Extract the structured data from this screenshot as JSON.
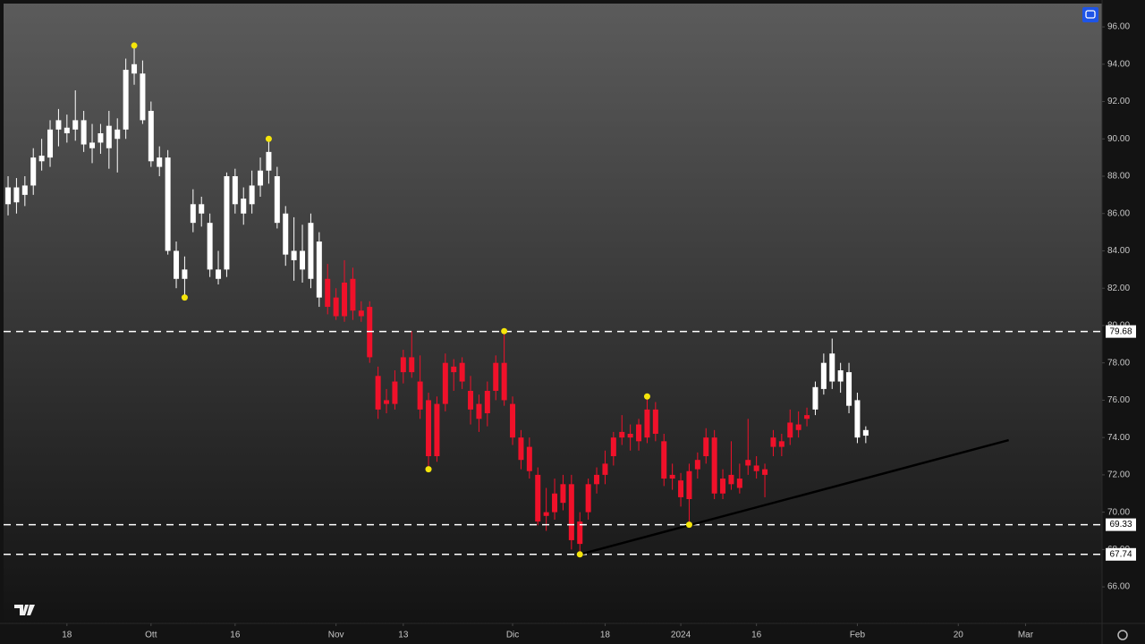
{
  "chart_data": {
    "type": "candlestick",
    "xlim": [
      -0.96,
      130.1
    ],
    "ylim": [
      64.04,
      97.44
    ],
    "yticks": [
      {
        "value": 66,
        "label": "66.00"
      },
      {
        "value": 68,
        "label": "68.00"
      },
      {
        "value": 70,
        "label": "70.00"
      },
      {
        "value": 72,
        "label": "72.00"
      },
      {
        "value": 74,
        "label": "74.00"
      },
      {
        "value": 76,
        "label": "76.00"
      },
      {
        "value": 78,
        "label": "78.00"
      },
      {
        "value": 80,
        "label": "80.00"
      },
      {
        "value": 82,
        "label": "82.00"
      },
      {
        "value": 84,
        "label": "84.00"
      },
      {
        "value": 86,
        "label": "86.00"
      },
      {
        "value": 88,
        "label": "88.00"
      },
      {
        "value": 90,
        "label": "90.00"
      },
      {
        "value": 92,
        "label": "92.00"
      },
      {
        "value": 94,
        "label": "94.00"
      },
      {
        "value": 96,
        "label": "96.00"
      }
    ],
    "xticks": [
      {
        "value": 7,
        "label": "18"
      },
      {
        "value": 17,
        "label": "Ott"
      },
      {
        "value": 27,
        "label": "16"
      },
      {
        "value": 39,
        "label": "Nov"
      },
      {
        "value": 47,
        "label": "13"
      },
      {
        "value": 60,
        "label": "Dic"
      },
      {
        "value": 71,
        "label": "18"
      },
      {
        "value": 80,
        "label": "2024"
      },
      {
        "value": 89,
        "label": "16"
      },
      {
        "value": 101,
        "label": "Feb"
      },
      {
        "value": 113,
        "label": "20"
      },
      {
        "value": 121,
        "label": "Mar"
      }
    ],
    "candles": [
      [
        86.5,
        88.0,
        85.9,
        87.4
      ],
      [
        86.6,
        87.9,
        86.0,
        87.4
      ],
      [
        87.0,
        88.0,
        86.4,
        87.5
      ],
      [
        87.5,
        89.5,
        87.0,
        89.0
      ],
      [
        88.8,
        90.0,
        88.3,
        89.1
      ],
      [
        89.0,
        91.0,
        88.5,
        90.5
      ],
      [
        90.5,
        91.6,
        89.6,
        91.0
      ],
      [
        90.3,
        91.3,
        89.8,
        90.6
      ],
      [
        90.5,
        92.6,
        89.9,
        91.0
      ],
      [
        91.0,
        91.5,
        89.3,
        89.7
      ],
      [
        89.5,
        90.8,
        88.7,
        89.8
      ],
      [
        89.8,
        90.8,
        89.2,
        90.3
      ],
      [
        89.5,
        91.5,
        88.4,
        90.7
      ],
      [
        90.0,
        91.1,
        88.2,
        90.5
      ],
      [
        90.5,
        94.3,
        90.0,
        93.7
      ],
      [
        93.5,
        95.0,
        92.9,
        94.0
      ],
      [
        93.5,
        94.2,
        90.8,
        91.0
      ],
      [
        91.5,
        92.0,
        88.5,
        88.8
      ],
      [
        88.5,
        89.6,
        88.0,
        89.0
      ],
      [
        89.0,
        89.4,
        83.8,
        84.0
      ],
      [
        84.0,
        84.5,
        82.0,
        82.5
      ],
      [
        82.5,
        83.7,
        81.5,
        83.0
      ],
      [
        85.5,
        87.3,
        85.0,
        86.5
      ],
      [
        86.0,
        86.9,
        85.3,
        86.5
      ],
      [
        85.5,
        86.0,
        82.6,
        83.0
      ],
      [
        83.0,
        84.0,
        82.2,
        82.5
      ],
      [
        83.0,
        88.2,
        82.6,
        88.0
      ],
      [
        88.0,
        88.4,
        86.0,
        86.5
      ],
      [
        86.0,
        87.4,
        85.4,
        86.8
      ],
      [
        86.5,
        88.3,
        86.0,
        87.5
      ],
      [
        87.5,
        89.0,
        86.9,
        88.3
      ],
      [
        88.3,
        90.0,
        87.6,
        89.3
      ],
      [
        88.0,
        88.5,
        85.2,
        85.5
      ],
      [
        86.0,
        86.4,
        83.2,
        83.8
      ],
      [
        84.0,
        85.8,
        82.4,
        83.5
      ],
      [
        84.0,
        85.4,
        82.3,
        83.0
      ],
      [
        85.5,
        86.0,
        82.0,
        82.5
      ],
      [
        84.5,
        85.0,
        81.0,
        81.5
      ],
      [
        82.5,
        83.3,
        80.6,
        81.0
      ],
      [
        81.5,
        82.0,
        80.3,
        80.5
      ],
      [
        80.5,
        83.5,
        80.2,
        82.3
      ],
      [
        82.5,
        83.1,
        80.3,
        80.8
      ],
      [
        80.8,
        81.3,
        80.2,
        80.5
      ],
      [
        81.0,
        81.3,
        78.0,
        78.3
      ],
      [
        77.3,
        77.8,
        75.0,
        75.5
      ],
      [
        76.0,
        76.6,
        75.3,
        75.8
      ],
      [
        77.0,
        77.6,
        75.5,
        75.8
      ],
      [
        77.5,
        78.7,
        76.9,
        78.3
      ],
      [
        78.3,
        79.7,
        77.2,
        77.5
      ],
      [
        77.0,
        78.4,
        75.0,
        75.5
      ],
      [
        76.0,
        76.4,
        72.3,
        73.0
      ],
      [
        73.0,
        76.2,
        72.7,
        75.8
      ],
      [
        75.8,
        78.5,
        75.4,
        78.0
      ],
      [
        77.8,
        78.2,
        76.5,
        77.5
      ],
      [
        78.0,
        78.3,
        76.6,
        77.0
      ],
      [
        76.5,
        77.3,
        74.7,
        75.5
      ],
      [
        75.8,
        76.3,
        74.3,
        75.0
      ],
      [
        75.3,
        77.0,
        74.6,
        76.5
      ],
      [
        76.5,
        78.4,
        76.0,
        78.0
      ],
      [
        78.0,
        79.7,
        75.7,
        76.0
      ],
      [
        75.8,
        76.2,
        73.6,
        74.0
      ],
      [
        74.0,
        74.4,
        72.3,
        72.8
      ],
      [
        73.5,
        74.0,
        71.8,
        72.2
      ],
      [
        72.0,
        72.4,
        69.3,
        69.5
      ],
      [
        70.0,
        71.3,
        69.0,
        69.8
      ],
      [
        71.0,
        71.8,
        69.6,
        70.0
      ],
      [
        71.5,
        72.0,
        70.1,
        70.5
      ],
      [
        71.5,
        72.0,
        68.0,
        68.5
      ],
      [
        69.5,
        70.0,
        67.74,
        68.3
      ],
      [
        70.0,
        71.8,
        69.6,
        71.5
      ],
      [
        71.5,
        72.4,
        71.0,
        72.0
      ],
      [
        72.0,
        73.3,
        71.5,
        72.6
      ],
      [
        73.0,
        74.3,
        72.5,
        74.0
      ],
      [
        74.0,
        75.2,
        73.6,
        74.3
      ],
      [
        74.2,
        74.7,
        73.3,
        74.0
      ],
      [
        73.8,
        75.0,
        73.3,
        74.7
      ],
      [
        74.0,
        76.2,
        73.7,
        75.5
      ],
      [
        75.5,
        75.9,
        73.8,
        74.2
      ],
      [
        73.8,
        74.2,
        71.4,
        71.8
      ],
      [
        72.0,
        72.6,
        71.2,
        71.8
      ],
      [
        71.7,
        72.1,
        70.3,
        70.8
      ],
      [
        70.7,
        72.6,
        69.33,
        72.2
      ],
      [
        72.3,
        73.2,
        71.8,
        72.8
      ],
      [
        73.0,
        74.5,
        72.6,
        74.0
      ],
      [
        74.0,
        74.4,
        70.7,
        71.0
      ],
      [
        71.0,
        72.3,
        70.7,
        71.8
      ],
      [
        72.0,
        73.8,
        71.2,
        71.5
      ],
      [
        71.8,
        72.6,
        71.0,
        71.3
      ],
      [
        72.5,
        75.0,
        72.0,
        72.8
      ],
      [
        72.5,
        73.0,
        71.8,
        72.2
      ],
      [
        72.0,
        72.6,
        70.8,
        72.3
      ],
      [
        73.5,
        74.4,
        73.0,
        74.0
      ],
      [
        73.5,
        74.2,
        73.0,
        73.8
      ],
      [
        74.0,
        75.5,
        73.6,
        74.8
      ],
      [
        74.7,
        75.4,
        74.0,
        74.4
      ],
      [
        75.0,
        75.6,
        74.6,
        75.2
      ],
      [
        75.5,
        77.0,
        75.2,
        76.7
      ],
      [
        76.6,
        78.5,
        76.3,
        78.0
      ],
      [
        78.5,
        79.3,
        76.6,
        77.0
      ],
      [
        77.0,
        78.0,
        76.4,
        77.6
      ],
      [
        77.5,
        78.0,
        75.3,
        75.7
      ],
      [
        76.0,
        76.4,
        73.7,
        74.0
      ],
      [
        74.1,
        74.6,
        73.7,
        74.4
      ]
    ],
    "colors": [
      "#ffffff",
      "#ffffff",
      "#ffffff",
      "#ffffff",
      "#ffffff",
      "#ffffff",
      "#ffffff",
      "#ffffff",
      "#ffffff",
      "#ffffff",
      "#ffffff",
      "#ffffff",
      "#ffffff",
      "#ffffff",
      "#ffffff",
      "#ffffff",
      "#ffffff",
      "#ffffff",
      "#ffffff",
      "#ffffff",
      "#ffffff",
      "#ffffff",
      "#ffffff",
      "#ffffff",
      "#ffffff",
      "#ffffff",
      "#ffffff",
      "#ffffff",
      "#ffffff",
      "#ffffff",
      "#ffffff",
      "#ffffff",
      "#ffffff",
      "#ffffff",
      "#ffffff",
      "#ffffff",
      "#ffffff",
      "#ffffff",
      "#f0112a",
      "#f0112a",
      "#f0112a",
      "#f0112a",
      "#f0112a",
      "#f0112a",
      "#f0112a",
      "#f0112a",
      "#f0112a",
      "#f0112a",
      "#f0112a",
      "#f0112a",
      "#f0112a",
      "#f0112a",
      "#f0112a",
      "#f0112a",
      "#f0112a",
      "#f0112a",
      "#f0112a",
      "#f0112a",
      "#f0112a",
      "#f0112a",
      "#f0112a",
      "#f0112a",
      "#f0112a",
      "#f0112a",
      "#f0112a",
      "#f0112a",
      "#f0112a",
      "#f0112a",
      "#f0112a",
      "#f0112a",
      "#f0112a",
      "#f0112a",
      "#f0112a",
      "#f0112a",
      "#f0112a",
      "#f0112a",
      "#f0112a",
      "#f0112a",
      "#f0112a",
      "#f0112a",
      "#f0112a",
      "#f0112a",
      "#f0112a",
      "#f0112a",
      "#f0112a",
      "#f0112a",
      "#f0112a",
      "#f0112a",
      "#f0112a",
      "#f0112a",
      "#f0112a",
      "#f0112a",
      "#f0112a",
      "#f0112a",
      "#f0112a",
      "#f0112a",
      "#ffffff",
      "#ffffff",
      "#ffffff",
      "#ffffff",
      "#ffffff",
      "#ffffff",
      "#ffffff"
    ],
    "pivots": {
      "x": [
        15,
        31,
        21,
        59,
        50,
        76,
        81,
        68
      ],
      "values": [
        95.0,
        90.0,
        81.5,
        79.7,
        72.3,
        76.2,
        69.33,
        67.74
      ],
      "color": "#f5e50a"
    },
    "levels": [
      79.68,
      69.33,
      67.74
    ],
    "trendline": {
      "x": [
        68,
        119
      ],
      "values": [
        67.74,
        73.86
      ],
      "color": "#000000"
    }
  }
}
